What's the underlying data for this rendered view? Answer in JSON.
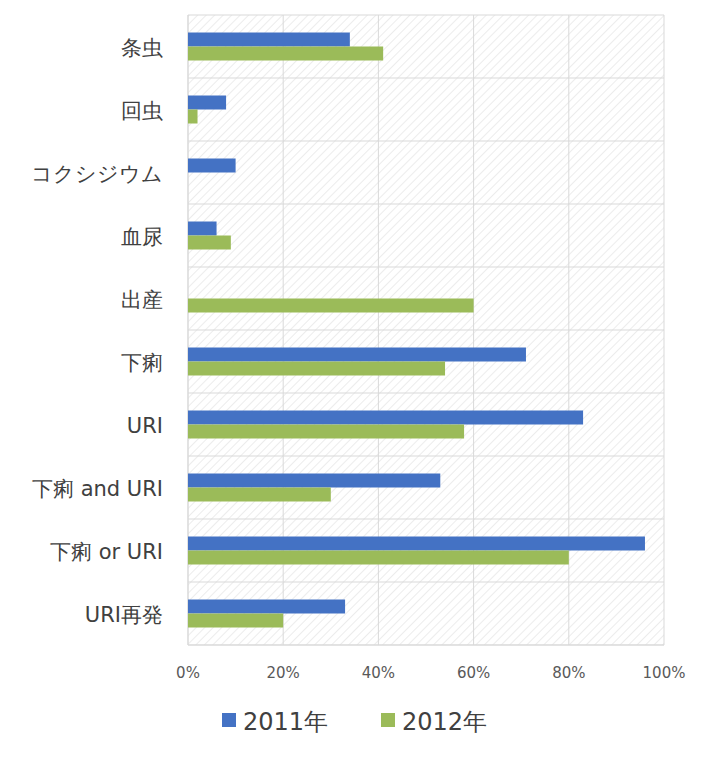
{
  "chart_data": {
    "type": "bar",
    "orientation": "horizontal",
    "categories": [
      "条虫",
      "回虫",
      "コクシジウム",
      "血尿",
      "出産",
      "下痢",
      "URI",
      "下痢 and URI",
      "下痢 or URI",
      "URI再発"
    ],
    "series": [
      {
        "name": "2011年",
        "color": "#4472c4",
        "values": [
          34,
          8,
          10,
          6,
          null,
          71,
          83,
          53,
          96,
          33
        ]
      },
      {
        "name": "2012年",
        "color": "#9bbb59",
        "values": [
          41,
          2,
          null,
          9,
          60,
          54,
          58,
          30,
          80,
          20
        ]
      }
    ],
    "xlim": [
      0,
      100
    ],
    "xticks": [
      {
        "value": 0,
        "label": "0%"
      },
      {
        "value": 20,
        "label": "20%"
      },
      {
        "value": 40,
        "label": "40%"
      },
      {
        "value": 60,
        "label": "60%"
      },
      {
        "value": 80,
        "label": "80%"
      },
      {
        "value": 100,
        "label": "100%"
      }
    ],
    "grid": true,
    "legend": "bottom"
  }
}
